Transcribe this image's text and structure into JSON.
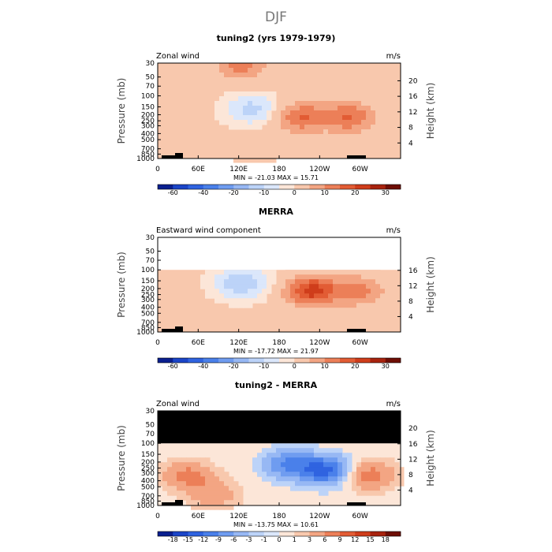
{
  "figure": {
    "title": "DJF"
  },
  "cb_ticks_main": [
    "-60",
    "-40",
    "-20",
    "-10",
    "0",
    "10",
    "20",
    "30"
  ],
  "cb_ticks_diff": [
    "-18",
    "-15",
    "-12",
    "-9",
    "-6",
    "-3",
    "-1",
    "0",
    "1",
    "3",
    "6",
    "9",
    "12",
    "15",
    "18"
  ],
  "chart_data": [
    {
      "type": "heatmap",
      "title": "tuning2 (yrs 1979-1979)",
      "left_label": "Zonal wind",
      "units": "m/s",
      "xlabel": "",
      "ylabel": "Pressure (mb)",
      "right_ylabel": "Height (km)",
      "x_ticks": [
        "0",
        "60E",
        "120E",
        "180",
        "120W",
        "60W"
      ],
      "pressure_ticks": [
        "30",
        "50",
        "70",
        "100",
        "150",
        "200",
        "250",
        "300",
        "400",
        "500",
        "700",
        "850",
        "1000"
      ],
      "height_ticks": [
        "20",
        "16",
        "12",
        "8",
        "4"
      ],
      "stats": "MIN = -21.03   MAX =  15.71",
      "colorbar_levels": [
        -70,
        -60,
        -50,
        -40,
        -30,
        -20,
        -15,
        -10,
        -5,
        0,
        5,
        10,
        15,
        20,
        25,
        30,
        35
      ],
      "data_top_mb": 30,
      "features": [
        {
          "lon": 210,
          "p": 200,
          "value": 15
        },
        {
          "lon": 280,
          "p": 200,
          "value": 15
        },
        {
          "lon": 135,
          "p": 150,
          "value": -12
        },
        {
          "lon": 120,
          "p": 30,
          "value": 12
        },
        {
          "lon": 140,
          "p": 600,
          "value": 5
        }
      ]
    },
    {
      "type": "heatmap",
      "title": "MERRA",
      "left_label": "Eastward wind component",
      "units": "m/s",
      "xlabel": "",
      "ylabel": "Pressure (mb)",
      "right_ylabel": "Height (km)",
      "x_ticks": [
        "0",
        "60E",
        "120E",
        "180",
        "120W",
        "60W"
      ],
      "pressure_ticks": [
        "30",
        "50",
        "70",
        "100",
        "150",
        "200",
        "250",
        "300",
        "400",
        "500",
        "700",
        "850",
        "1000"
      ],
      "height_ticks": [
        "16",
        "12",
        "8",
        "4"
      ],
      "stats": "MIN = -17.72   MAX =  21.97",
      "colorbar_levels": [
        -70,
        -60,
        -50,
        -40,
        -30,
        -20,
        -15,
        -10,
        -5,
        0,
        5,
        10,
        15,
        20,
        25,
        30,
        35
      ],
      "data_top_mb": 100,
      "features": [
        {
          "lon": 225,
          "p": 200,
          "value": 22
        },
        {
          "lon": 295,
          "p": 200,
          "value": 12
        },
        {
          "lon": 120,
          "p": 150,
          "value": -15
        }
      ]
    },
    {
      "type": "heatmap",
      "title": "tuning2 - MERRA",
      "left_label": "Zonal wind",
      "units": "m/s",
      "xlabel": "",
      "ylabel": "Pressure (mb)",
      "right_ylabel": "Height (km)",
      "x_ticks": [
        "0",
        "60E",
        "120E",
        "180",
        "120W",
        "60W"
      ],
      "pressure_ticks": [
        "30",
        "50",
        "70",
        "100",
        "150",
        "200",
        "250",
        "300",
        "400",
        "500",
        "700",
        "850",
        "1000"
      ],
      "height_ticks": [
        "20",
        "16",
        "12",
        "8",
        "4"
      ],
      "stats": "MIN = -13.75   MAX =  10.61",
      "colorbar_levels": [
        -21,
        -18,
        -15,
        -12,
        -9,
        -6,
        -3,
        -1,
        0,
        1,
        3,
        6,
        9,
        12,
        15,
        18,
        21
      ],
      "data_top_mb": 100,
      "features": [
        {
          "lon": 245,
          "p": 250,
          "value": -13
        },
        {
          "lon": 190,
          "p": 200,
          "value": -9
        },
        {
          "lon": 310,
          "p": 300,
          "value": 8
        },
        {
          "lon": 40,
          "p": 300,
          "value": 7
        },
        {
          "lon": 80,
          "p": 600,
          "value": 5
        }
      ]
    }
  ]
}
